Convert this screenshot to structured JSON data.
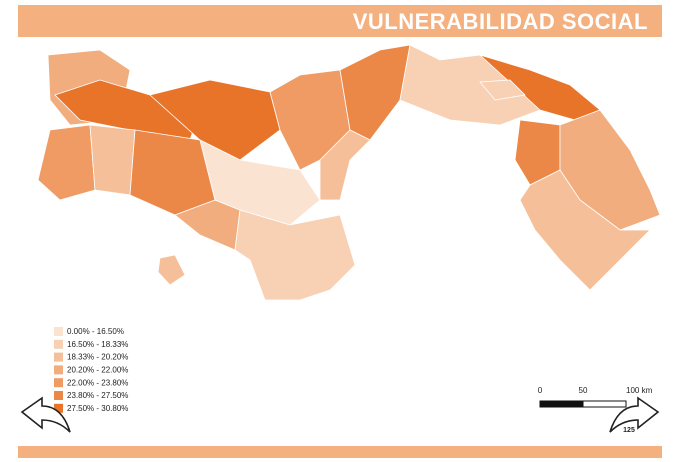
{
  "header": {
    "title": "VULNERABILIDAD SOCIAL"
  },
  "legend": {
    "items": [
      {
        "label": "0.00% - 16.50%",
        "color": "#fbe3d2"
      },
      {
        "label": "16.50% - 18.33%",
        "color": "#f8d0b4"
      },
      {
        "label": "18.33% - 20.20%",
        "color": "#f5bf99"
      },
      {
        "label": "20.20% - 22.00%",
        "color": "#f2ad7e"
      },
      {
        "label": "22.00% - 23.80%",
        "color": "#ef9b63"
      },
      {
        "label": "23.80% - 27.50%",
        "color": "#ec8847"
      },
      {
        "label": "27.50% - 30.80%",
        "color": "#e8742a"
      }
    ]
  },
  "scale_bar": {
    "labels": [
      "0",
      "50",
      "100 km"
    ]
  },
  "page_number": "125"
}
